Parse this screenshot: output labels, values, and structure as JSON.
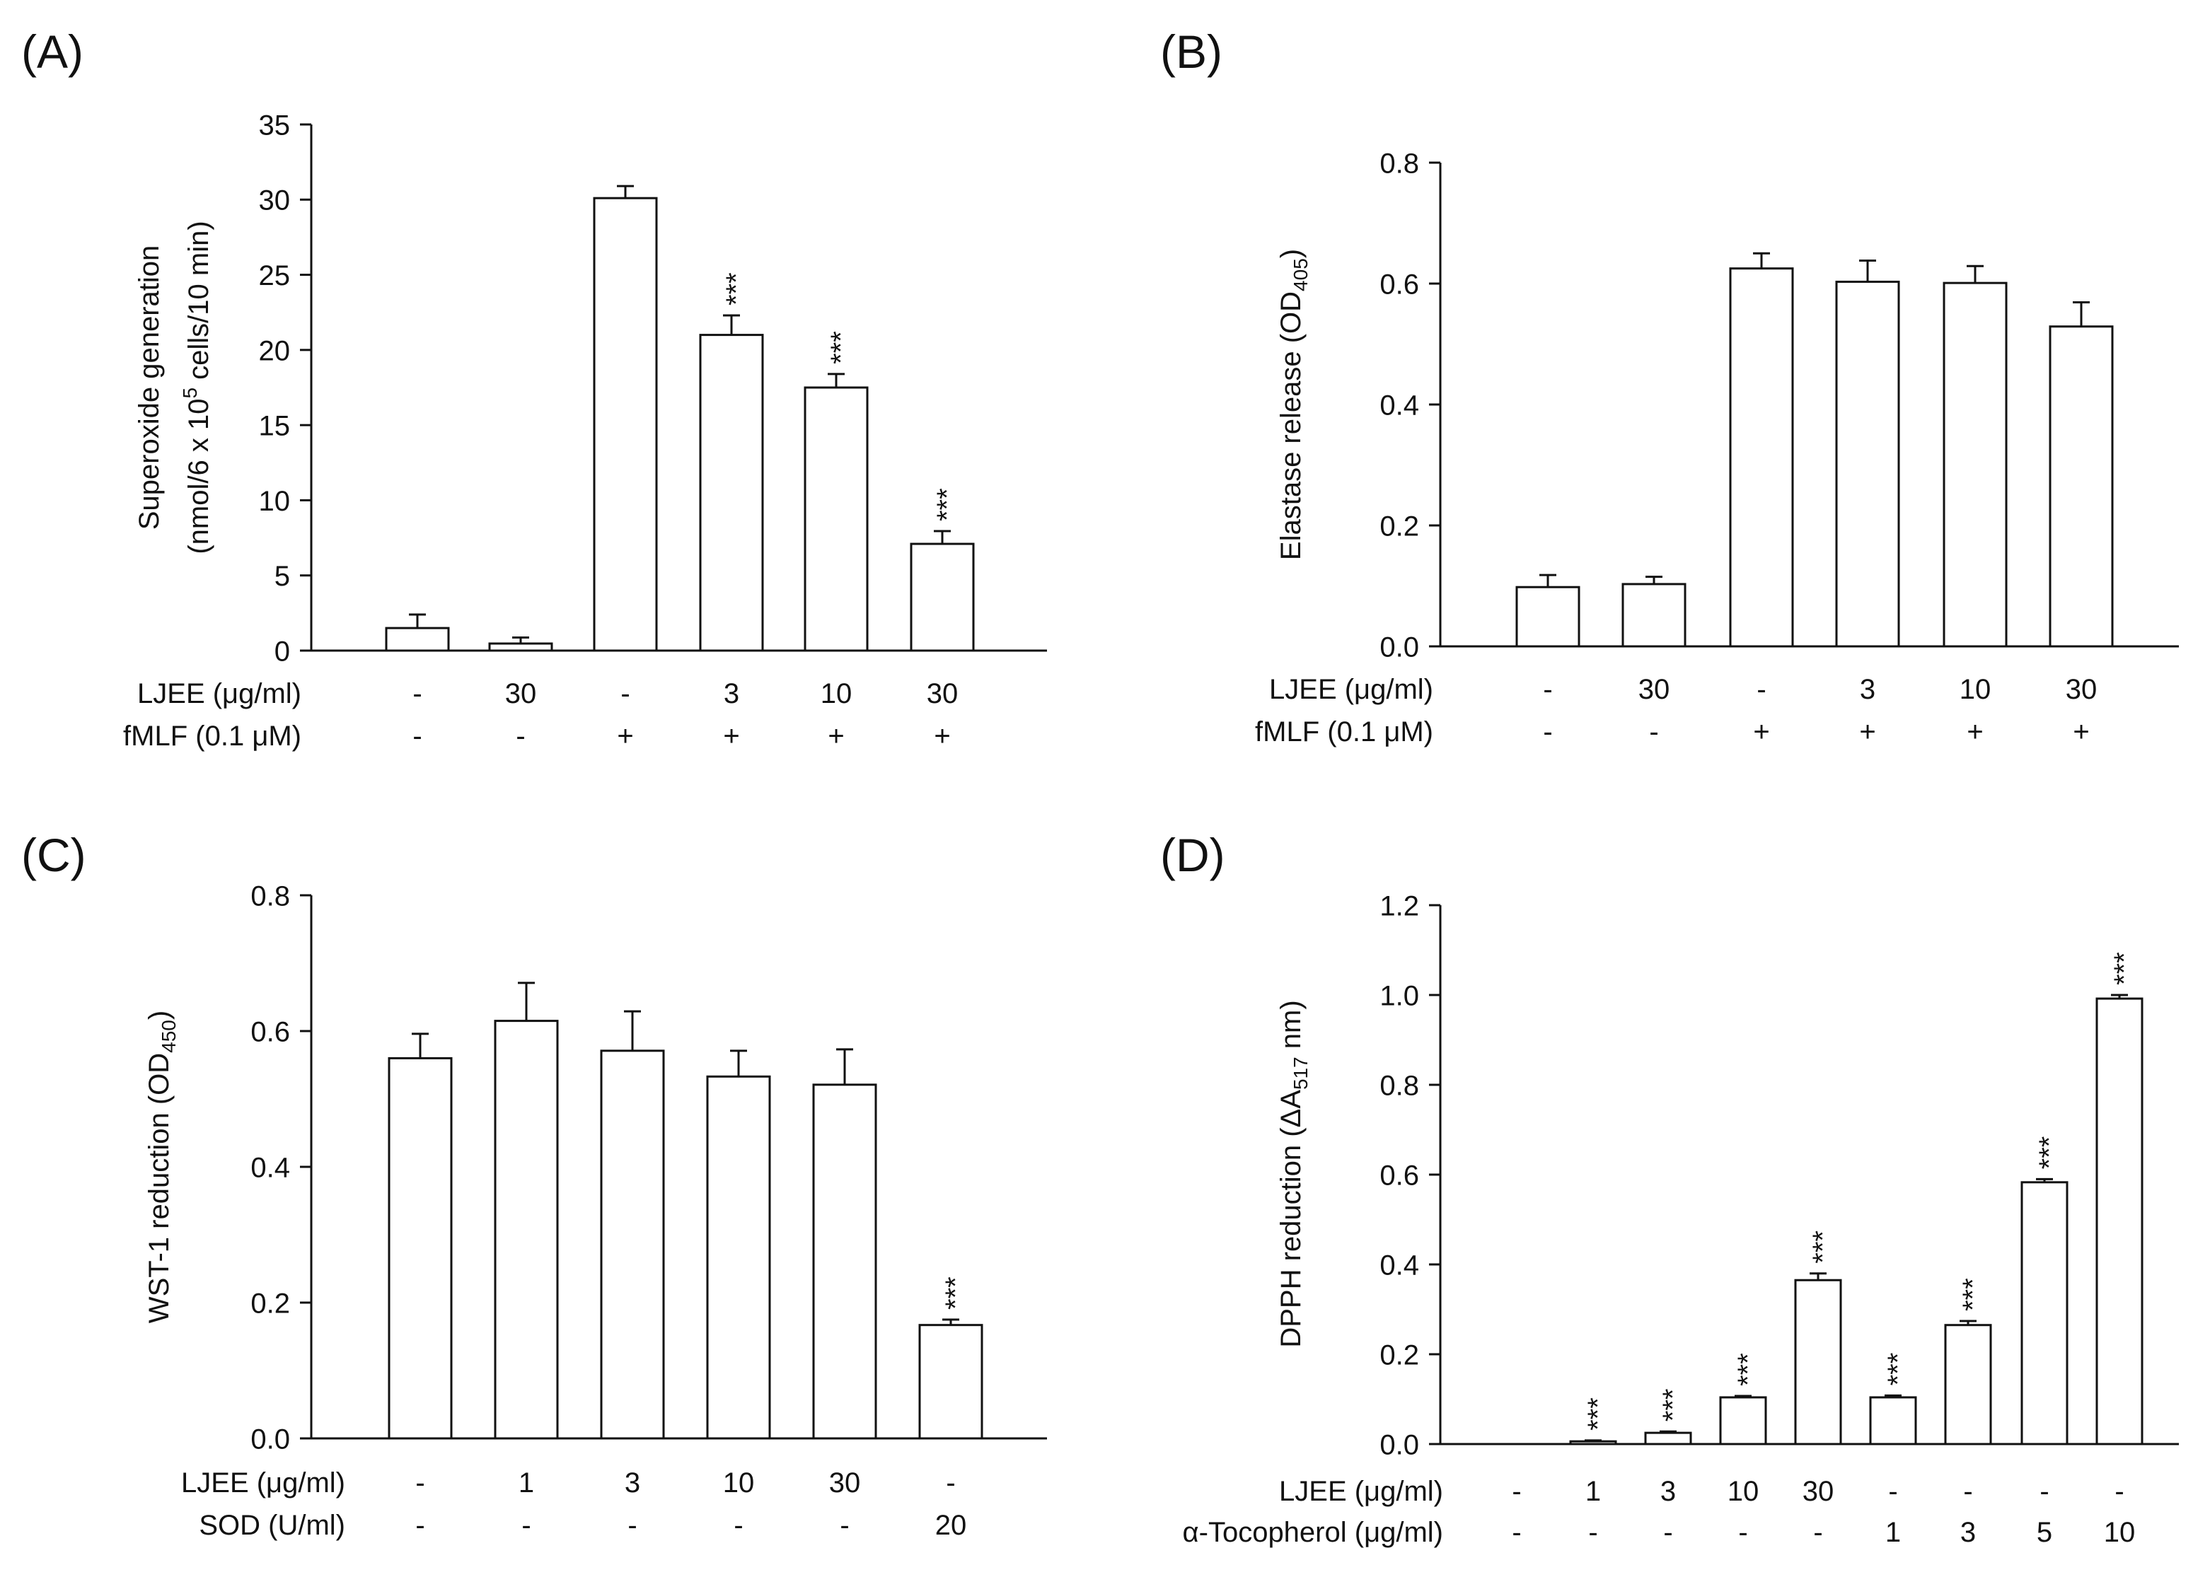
{
  "chart_data": [
    {
      "type": "bar",
      "panel_label": "(A)",
      "ylabel_lines": [
        [
          {
            "t": "Superoxide generation"
          }
        ],
        [
          {
            "t": "(nmol/6 x 10"
          },
          {
            "t": "5",
            "sup": true
          },
          {
            "t": " cells/10 min)"
          }
        ]
      ],
      "ylim": [
        0,
        35
      ],
      "yticks": [
        0,
        5,
        10,
        15,
        20,
        25,
        30,
        35
      ],
      "ytick_labels": [
        "0",
        "5",
        "10",
        "15",
        "20",
        "25",
        "30",
        "35"
      ],
      "values": [
        1.5,
        0.47,
        30.1,
        21.0,
        17.5,
        7.1
      ],
      "errors": [
        0.9,
        0.4,
        0.8,
        1.3,
        0.9,
        0.85
      ],
      "significance": [
        "",
        "",
        "",
        "***",
        "***",
        "***"
      ],
      "rows": [
        {
          "label": "LJEE (μg/ml)",
          "values": [
            "-",
            "30",
            "-",
            "3",
            "10",
            "30"
          ]
        },
        {
          "label": "fMLF (0.1 μM)",
          "values": [
            "-",
            "-",
            "+",
            "+",
            "+",
            "+"
          ]
        }
      ]
    },
    {
      "type": "bar",
      "panel_label": "(B)",
      "ylabel_lines": [
        [
          {
            "t": "Elastase release (OD"
          },
          {
            "t": "405",
            "sub": true
          },
          {
            "t": ")"
          }
        ]
      ],
      "ylim": [
        0,
        0.8
      ],
      "yticks": [
        0,
        0.2,
        0.4,
        0.6,
        0.8
      ],
      "ytick_labels": [
        "0.0",
        "0.2",
        "0.4",
        "0.6",
        "0.8"
      ],
      "values": [
        0.098,
        0.103,
        0.625,
        0.603,
        0.601,
        0.529
      ],
      "errors": [
        0.02,
        0.012,
        0.025,
        0.035,
        0.028,
        0.04
      ],
      "significance": [
        "",
        "",
        "",
        "",
        "",
        ""
      ],
      "rows": [
        {
          "label": "LJEE (μg/ml)",
          "values": [
            "-",
            "30",
            "-",
            "3",
            "10",
            "30"
          ]
        },
        {
          "label": "fMLF (0.1 μM)",
          "values": [
            "-",
            "-",
            "+",
            "+",
            "+",
            "+"
          ]
        }
      ]
    },
    {
      "type": "bar",
      "panel_label": "(C)",
      "ylabel_lines": [
        [
          {
            "t": "WST-1 reduction (OD"
          },
          {
            "t": "450",
            "sub": true
          },
          {
            "t": ")"
          }
        ]
      ],
      "ylim": [
        0,
        0.8
      ],
      "yticks": [
        0,
        0.2,
        0.4,
        0.6,
        0.8
      ],
      "ytick_labels": [
        "0.0",
        "0.2",
        "0.4",
        "0.6",
        "0.8"
      ],
      "values": [
        0.56,
        0.615,
        0.571,
        0.533,
        0.521,
        0.167
      ],
      "errors": [
        0.036,
        0.056,
        0.058,
        0.038,
        0.052,
        0.008
      ],
      "significance": [
        "",
        "",
        "",
        "",
        "",
        "***"
      ],
      "rows": [
        {
          "label": "LJEE (μg/ml)",
          "values": [
            "-",
            "1",
            "3",
            "10",
            "30",
            "-"
          ]
        },
        {
          "label": "SOD (U/ml)",
          "values": [
            "-",
            "-",
            "-",
            "-",
            "-",
            "20"
          ]
        }
      ]
    },
    {
      "type": "bar",
      "panel_label": "(D)",
      "ylabel_lines": [
        [
          {
            "t": "DPPH reduction (ΔA"
          },
          {
            "t": "517",
            "sub": true
          },
          {
            "t": " nm)"
          }
        ]
      ],
      "ylim": [
        0,
        1.2
      ],
      "yticks": [
        0,
        0.2,
        0.4,
        0.6,
        0.8,
        1.0,
        1.2
      ],
      "ytick_labels": [
        "0.0",
        "0.2",
        "0.4",
        "0.6",
        "0.8",
        "1.0",
        "1.2"
      ],
      "values": [
        0,
        0.006,
        0.025,
        0.104,
        0.365,
        0.104,
        0.265,
        0.583,
        0.992
      ],
      "errors": [
        0,
        0.002,
        0.003,
        0.003,
        0.015,
        0.004,
        0.009,
        0.007,
        0.008
      ],
      "significance": [
        "",
        "***",
        "***",
        "***",
        "***",
        "***",
        "***",
        "***",
        "***"
      ],
      "rows": [
        {
          "label": "LJEE (μg/ml)",
          "values": [
            "-",
            "1",
            "3",
            "10",
            "30",
            "-",
            "-",
            "-",
            "-"
          ]
        },
        {
          "label": "α-Tocopherol (μg/ml)",
          "values": [
            "-",
            "-",
            "-",
            "-",
            "-",
            "1",
            "3",
            "5",
            "10"
          ]
        }
      ]
    }
  ]
}
